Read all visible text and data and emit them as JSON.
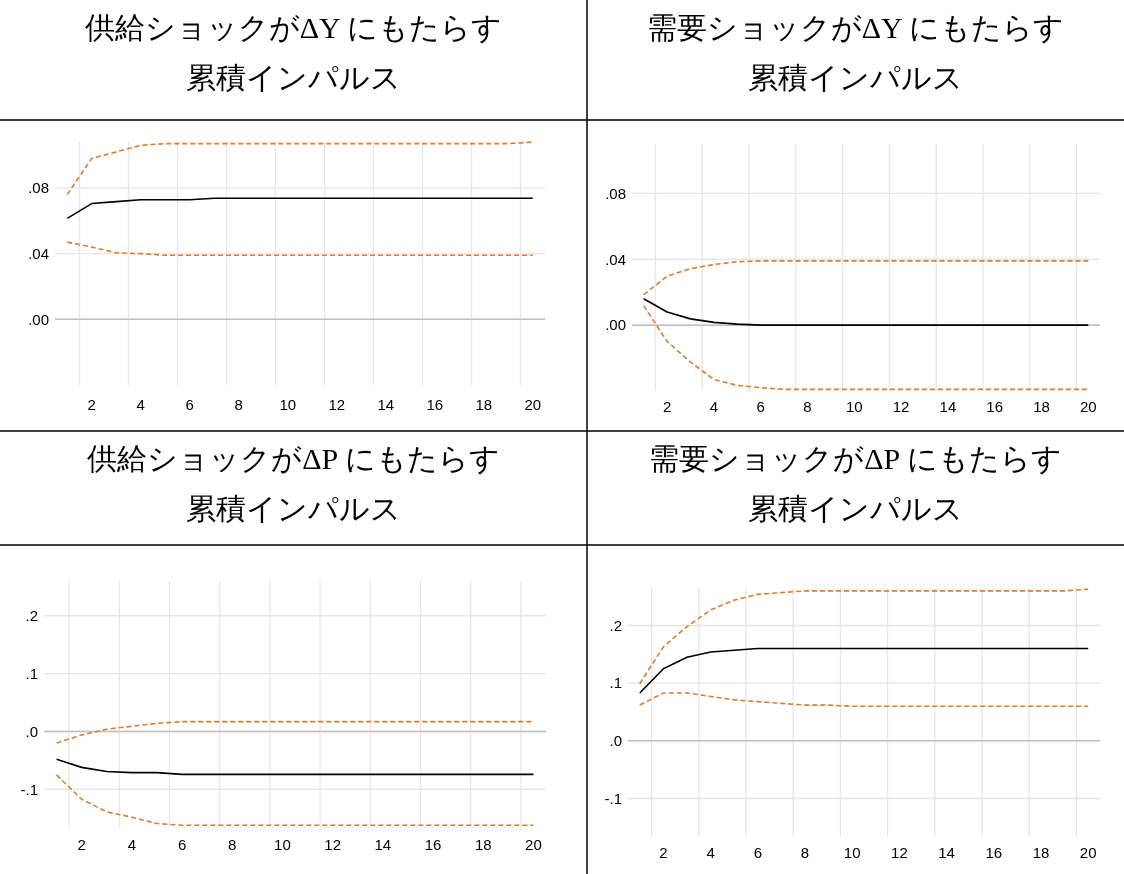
{
  "chart_data": [
    {
      "type": "line",
      "title": "供給ショックがΔY にもたらす",
      "subtitle": "累積インパルス",
      "x": [
        1,
        2,
        3,
        4,
        5,
        6,
        7,
        8,
        9,
        10,
        11,
        12,
        13,
        14,
        15,
        16,
        17,
        18,
        19,
        20
      ],
      "xlim": [
        0.5,
        20.5
      ],
      "xticks": [
        {
          "value": 1.5,
          "label": null
        },
        {
          "value": 2,
          "label": "2"
        },
        {
          "value": 3.5,
          "label": null
        },
        {
          "value": 4,
          "label": "4"
        },
        {
          "value": 5.5,
          "label": null
        },
        {
          "value": 6,
          "label": "6"
        },
        {
          "value": 7.5,
          "label": null
        },
        {
          "value": 8,
          "label": "8"
        },
        {
          "value": 9.5,
          "label": null
        },
        {
          "value": 10,
          "label": "10"
        },
        {
          "value": 11.5,
          "label": null
        },
        {
          "value": 12,
          "label": "12"
        },
        {
          "value": 13.5,
          "label": null
        },
        {
          "value": 14,
          "label": "14"
        },
        {
          "value": 15.5,
          "label": null
        },
        {
          "value": 16,
          "label": "16"
        },
        {
          "value": 17.5,
          "label": null
        },
        {
          "value": 18,
          "label": "18"
        },
        {
          "value": 19.5,
          "label": null
        },
        {
          "value": 20,
          "label": "20"
        }
      ],
      "ylim": [
        -0.04,
        0.108
      ],
      "yticks": [
        {
          "value": 0,
          "label": ".00"
        },
        {
          "value": 0.04,
          "label": ".04"
        },
        {
          "value": 0.08,
          "label": ".08"
        }
      ],
      "grid": true,
      "ref_lines": [
        {
          "axis": "y",
          "value": 0,
          "color": "#bfbfbf"
        }
      ],
      "series": [
        {
          "color": "#000000",
          "line_style": "solid",
          "values": [
            0.0615,
            0.0705,
            0.0717,
            0.0728,
            0.0728,
            0.0728,
            0.0737,
            0.0737,
            0.0737,
            0.0737,
            0.0737,
            0.0737,
            0.0737,
            0.0737,
            0.0737,
            0.0737,
            0.0737,
            0.0737,
            0.0737,
            0.0737
          ]
        },
        {
          "color": "#e07b30",
          "line_style": "dashed",
          "values": [
            0.076,
            0.098,
            0.102,
            0.106,
            0.107,
            0.107,
            0.107,
            0.107,
            0.107,
            0.107,
            0.107,
            0.107,
            0.107,
            0.107,
            0.107,
            0.107,
            0.107,
            0.107,
            0.107,
            0.108
          ]
        },
        {
          "color": "#e07b30",
          "line_style": "dashed",
          "values": [
            0.047,
            0.044,
            0.0405,
            0.04,
            0.039,
            0.039,
            0.039,
            0.039,
            0.039,
            0.039,
            0.039,
            0.039,
            0.039,
            0.039,
            0.039,
            0.039,
            0.039,
            0.039,
            0.039,
            0.039
          ]
        }
      ]
    },
    {
      "type": "line",
      "title": "需要ショックがΔY にもたらす",
      "subtitle": "累積インパルス",
      "x": [
        1,
        2,
        3,
        4,
        5,
        6,
        7,
        8,
        9,
        10,
        11,
        12,
        13,
        14,
        15,
        16,
        17,
        18,
        19,
        20
      ],
      "xlim": [
        0.5,
        20.5
      ],
      "xticks": [
        {
          "value": 1.5,
          "label": null
        },
        {
          "value": 2,
          "label": "2"
        },
        {
          "value": 3.5,
          "label": null
        },
        {
          "value": 4,
          "label": "4"
        },
        {
          "value": 5.5,
          "label": null
        },
        {
          "value": 6,
          "label": "6"
        },
        {
          "value": 7.5,
          "label": null
        },
        {
          "value": 8,
          "label": "8"
        },
        {
          "value": 9.5,
          "label": null
        },
        {
          "value": 10,
          "label": "10"
        },
        {
          "value": 11.5,
          "label": null
        },
        {
          "value": 12,
          "label": "12"
        },
        {
          "value": 13.5,
          "label": null
        },
        {
          "value": 14,
          "label": "14"
        },
        {
          "value": 15.5,
          "label": null
        },
        {
          "value": 16,
          "label": "16"
        },
        {
          "value": 17.5,
          "label": null
        },
        {
          "value": 18,
          "label": "18"
        },
        {
          "value": 19.5,
          "label": null
        },
        {
          "value": 20,
          "label": "20"
        }
      ],
      "ylim": [
        -0.04,
        0.11
      ],
      "yticks": [
        {
          "value": 0,
          "label": ".00"
        },
        {
          "value": 0.04,
          "label": ".04"
        },
        {
          "value": 0.08,
          "label": ".08"
        }
      ],
      "grid": true,
      "ref_lines": [
        {
          "axis": "y",
          "value": 0,
          "color": "#bfbfbf"
        }
      ],
      "series": [
        {
          "color": "#000000",
          "line_style": "solid",
          "values": [
            0.016,
            0.008,
            0.0038,
            0.0017,
            0.0006,
            0,
            0,
            0,
            0,
            0,
            0,
            0,
            0,
            0,
            0,
            0,
            0,
            0,
            0,
            0
          ]
        },
        {
          "color": "#e07b30",
          "line_style": "dashed",
          "values": [
            0.0185,
            0.0297,
            0.0343,
            0.0368,
            0.0385,
            0.039,
            0.039,
            0.039,
            0.039,
            0.039,
            0.039,
            0.039,
            0.039,
            0.039,
            0.039,
            0.039,
            0.039,
            0.039,
            0.039,
            0.039
          ]
        },
        {
          "color": "#e07b30",
          "line_style": "dashed",
          "values": [
            0.0118,
            -0.0099,
            -0.0225,
            -0.033,
            -0.0366,
            -0.038,
            -0.039,
            -0.039,
            -0.039,
            -0.039,
            -0.039,
            -0.039,
            -0.039,
            -0.039,
            -0.039,
            -0.039,
            -0.039,
            -0.039,
            -0.039,
            -0.039
          ]
        }
      ]
    },
    {
      "type": "line",
      "title": "供給ショックがΔP にもたらす",
      "subtitle": "累積インパルス",
      "x": [
        1,
        2,
        3,
        4,
        5,
        6,
        7,
        8,
        9,
        10,
        11,
        12,
        13,
        14,
        15,
        16,
        17,
        18,
        19,
        20
      ],
      "xlim": [
        0.5,
        20.5
      ],
      "xticks": [
        {
          "value": 1.5,
          "label": null
        },
        {
          "value": 2,
          "label": "2"
        },
        {
          "value": 3.5,
          "label": null
        },
        {
          "value": 4,
          "label": "4"
        },
        {
          "value": 5.5,
          "label": null
        },
        {
          "value": 6,
          "label": "6"
        },
        {
          "value": 7.5,
          "label": null
        },
        {
          "value": 8,
          "label": "8"
        },
        {
          "value": 9.5,
          "label": null
        },
        {
          "value": 10,
          "label": "10"
        },
        {
          "value": 11.5,
          "label": null
        },
        {
          "value": 12,
          "label": "12"
        },
        {
          "value": 13.5,
          "label": null
        },
        {
          "value": 14,
          "label": "14"
        },
        {
          "value": 15.5,
          "label": null
        },
        {
          "value": 16,
          "label": "16"
        },
        {
          "value": 17.5,
          "label": null
        },
        {
          "value": 18,
          "label": "18"
        },
        {
          "value": 19.5,
          "label": null
        },
        {
          "value": 20,
          "label": "20"
        }
      ],
      "ylim": [
        -0.165,
        0.26
      ],
      "yticks": [
        {
          "value": -0.1,
          "label": "-.1"
        },
        {
          "value": 0,
          "label": ".0"
        },
        {
          "value": 0.1,
          "label": ".1"
        },
        {
          "value": 0.2,
          "label": ".2"
        }
      ],
      "grid": true,
      "ref_lines": [
        {
          "axis": "y",
          "value": 0,
          "color": "#bfbfbf"
        }
      ],
      "series": [
        {
          "color": "#000000",
          "line_style": "solid",
          "values": [
            -0.048,
            -0.062,
            -0.069,
            -0.071,
            -0.071,
            -0.074,
            -0.074,
            -0.074,
            -0.074,
            -0.074,
            -0.074,
            -0.074,
            -0.074,
            -0.074,
            -0.074,
            -0.074,
            -0.074,
            -0.074,
            -0.074,
            -0.074
          ]
        },
        {
          "color": "#e07b30",
          "line_style": "dashed",
          "values": [
            -0.02,
            -0.006,
            0.004,
            0.009,
            0.014,
            0.017,
            0.017,
            0.017,
            0.017,
            0.017,
            0.017,
            0.017,
            0.017,
            0.017,
            0.017,
            0.017,
            0.017,
            0.017,
            0.017,
            0.017
          ]
        },
        {
          "color": "#e07b30",
          "line_style": "dashed",
          "values": [
            -0.075,
            -0.117,
            -0.139,
            -0.148,
            -0.159,
            -0.162,
            -0.162,
            -0.162,
            -0.162,
            -0.162,
            -0.162,
            -0.162,
            -0.162,
            -0.162,
            -0.162,
            -0.162,
            -0.162,
            -0.162,
            -0.162,
            -0.162
          ]
        }
      ]
    },
    {
      "type": "line",
      "title": "需要ショックがΔP にもたらす",
      "subtitle": "累積インパルス",
      "x": [
        1,
        2,
        3,
        4,
        5,
        6,
        7,
        8,
        9,
        10,
        11,
        12,
        13,
        14,
        15,
        16,
        17,
        18,
        19,
        20
      ],
      "xlim": [
        0.5,
        20.5
      ],
      "xticks": [
        {
          "value": 1.5,
          "label": null
        },
        {
          "value": 2,
          "label": "2"
        },
        {
          "value": 3.5,
          "label": null
        },
        {
          "value": 4,
          "label": "4"
        },
        {
          "value": 5.5,
          "label": null
        },
        {
          "value": 6,
          "label": "6"
        },
        {
          "value": 7.5,
          "label": null
        },
        {
          "value": 8,
          "label": "8"
        },
        {
          "value": 9.5,
          "label": null
        },
        {
          "value": 10,
          "label": "10"
        },
        {
          "value": 11.5,
          "label": null
        },
        {
          "value": 12,
          "label": "12"
        },
        {
          "value": 13.5,
          "label": null
        },
        {
          "value": 14,
          "label": "14"
        },
        {
          "value": 15.5,
          "label": null
        },
        {
          "value": 16,
          "label": "16"
        },
        {
          "value": 17.5,
          "label": null
        },
        {
          "value": 18,
          "label": "18"
        },
        {
          "value": 19.5,
          "label": null
        },
        {
          "value": 20,
          "label": "20"
        }
      ],
      "ylim": [
        -0.165,
        0.265
      ],
      "yticks": [
        {
          "value": -0.1,
          "label": "-.1"
        },
        {
          "value": 0,
          "label": ".0"
        },
        {
          "value": 0.1,
          "label": ".1"
        },
        {
          "value": 0.2,
          "label": ".2"
        }
      ],
      "grid": true,
      "ref_lines": [
        {
          "axis": "y",
          "value": 0,
          "color": "#bfbfbf"
        }
      ],
      "series": [
        {
          "color": "#000000",
          "line_style": "solid",
          "values": [
            0.083,
            0.125,
            0.145,
            0.154,
            0.157,
            0.16,
            0.16,
            0.16,
            0.16,
            0.16,
            0.16,
            0.16,
            0.16,
            0.16,
            0.16,
            0.16,
            0.16,
            0.16,
            0.16,
            0.16
          ]
        },
        {
          "color": "#e07b30",
          "line_style": "dashed",
          "values": [
            0.099,
            0.163,
            0.198,
            0.227,
            0.244,
            0.254,
            0.257,
            0.26,
            0.26,
            0.26,
            0.26,
            0.26,
            0.26,
            0.26,
            0.26,
            0.26,
            0.26,
            0.26,
            0.26,
            0.263
          ]
        },
        {
          "color": "#e07b30",
          "line_style": "dashed",
          "values": [
            0.062,
            0.083,
            0.083,
            0.077,
            0.071,
            0.068,
            0.065,
            0.062,
            0.062,
            0.06,
            0.06,
            0.06,
            0.06,
            0.06,
            0.06,
            0.06,
            0.06,
            0.06,
            0.06,
            0.06
          ]
        }
      ]
    }
  ]
}
